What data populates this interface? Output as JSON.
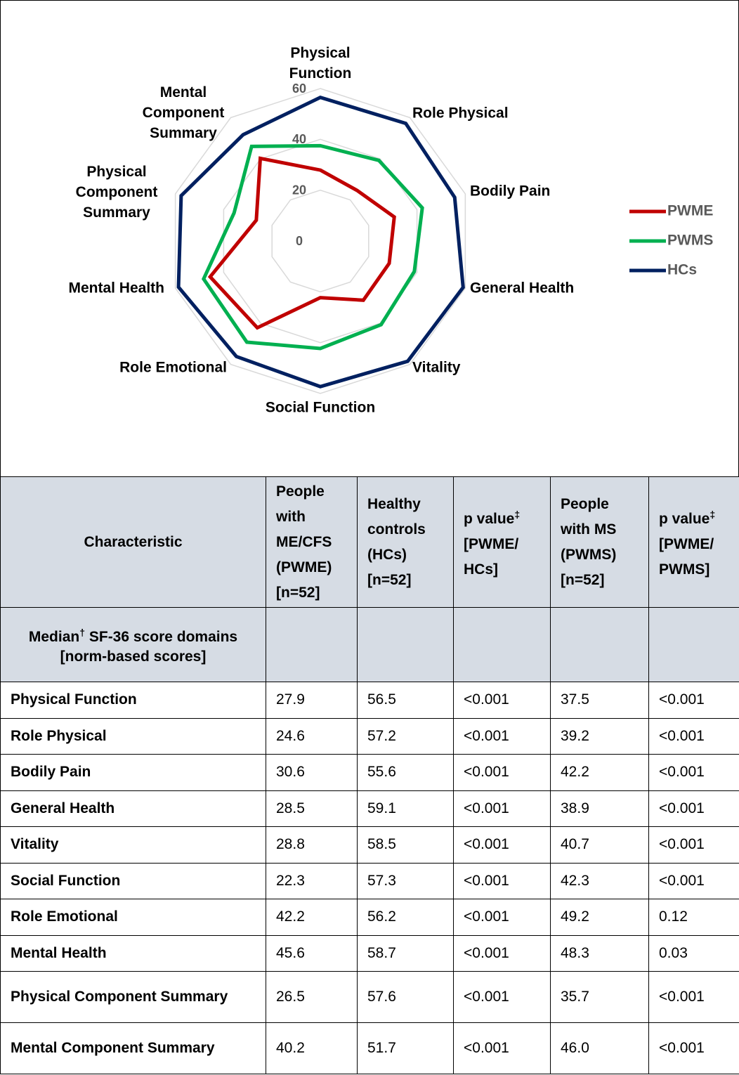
{
  "chart_data": {
    "type": "radar",
    "categories": [
      "Physical Function",
      "Role Physical",
      "Bodily Pain",
      "General Health",
      "Vitality",
      "Social Function",
      "Role Emotional",
      "Mental Health",
      "Physical Component Summary",
      "Mental Component Summary"
    ],
    "series": [
      {
        "name": "PWME",
        "color": "#c00000",
        "values": [
          27.9,
          24.6,
          30.6,
          28.5,
          28.8,
          22.3,
          42.2,
          45.6,
          26.5,
          40.2
        ]
      },
      {
        "name": "PWMS",
        "color": "#00b050",
        "values": [
          37.5,
          39.2,
          42.2,
          38.9,
          40.7,
          42.3,
          49.2,
          48.3,
          35.7,
          46.0
        ]
      },
      {
        "name": "HCs",
        "color": "#002060",
        "values": [
          56.5,
          57.2,
          55.6,
          59.1,
          58.5,
          57.3,
          56.2,
          58.7,
          57.6,
          51.7
        ]
      }
    ],
    "rlim": [
      0,
      60
    ],
    "rticks": [
      0,
      20,
      40,
      60
    ],
    "grid": true,
    "legend": "right"
  },
  "table": {
    "header": [
      {
        "text": "Characteristic"
      },
      {
        "text": "People with ME/CFS (PWME) [n=52]"
      },
      {
        "text": "Healthy controls (HCs) [n=52]"
      },
      {
        "text": "p value",
        "sup": "‡",
        "note": "[PWME/ HCs]"
      },
      {
        "text": "People with MS (PWMS) [n=52]"
      },
      {
        "text": "p value",
        "sup": "‡",
        "note": "[PWME/ PWMS]"
      }
    ],
    "section": {
      "text": "Median",
      "sup": "†",
      "note": "SF-36 score domains [norm-based scores]"
    },
    "rows": [
      [
        "Physical Function",
        "27.9",
        "56.5",
        "<0.001",
        "37.5",
        "<0.001"
      ],
      [
        "Role Physical",
        "24.6",
        "57.2",
        "<0.001",
        "39.2",
        "<0.001"
      ],
      [
        "Bodily Pain",
        "30.6",
        "55.6",
        "<0.001",
        "42.2",
        "<0.001"
      ],
      [
        "General Health",
        "28.5",
        "59.1",
        "<0.001",
        "38.9",
        "<0.001"
      ],
      [
        "Vitality",
        "28.8",
        "58.5",
        "<0.001",
        "40.7",
        "<0.001"
      ],
      [
        "Social Function",
        "22.3",
        "57.3",
        "<0.001",
        "42.3",
        "<0.001"
      ],
      [
        "Role Emotional",
        "42.2",
        "56.2",
        "<0.001",
        "49.2",
        "0.12"
      ],
      [
        "Mental Health",
        "45.6",
        "58.7",
        "<0.001",
        "48.3",
        "0.03"
      ],
      [
        "Physical Component Summary",
        "26.5",
        "57.6",
        "<0.001",
        "35.7",
        "<0.001"
      ],
      [
        "Mental Component Summary",
        "40.2",
        "51.7",
        "<0.001",
        "46.0",
        "<0.001"
      ]
    ]
  }
}
